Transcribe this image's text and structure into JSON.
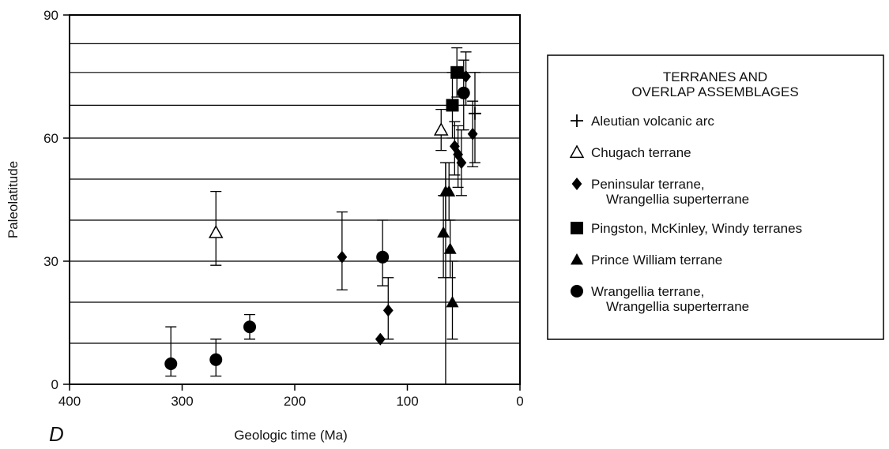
{
  "chart_data": {
    "type": "scatter",
    "panel_label": "D",
    "xlabel": "Geologic time (Ma)",
    "ylabel": "Paleolatitude",
    "xlim": [
      400,
      0
    ],
    "ylim": [
      0,
      90
    ],
    "x_ticks": [
      400,
      300,
      200,
      100,
      0
    ],
    "y_ticks": [
      0,
      30,
      60,
      90
    ],
    "gridlines_y": [
      10,
      20,
      30,
      40,
      50,
      60,
      68,
      76,
      83
    ],
    "legend": {
      "title_lines": [
        "TERRANES AND",
        "OVERLAP ASSEMBLAGES"
      ],
      "placement": "right"
    },
    "series": [
      {
        "name_lines": [
          "Aleutian volcanic arc"
        ],
        "marker": "plus",
        "points": [
          {
            "x": 40,
            "y": 66,
            "err_low": 54,
            "err_high": 76
          }
        ]
      },
      {
        "name_lines": [
          "Chugach terrane"
        ],
        "marker": "triangle-open",
        "points": [
          {
            "x": 270,
            "y": 37,
            "err_low": 29,
            "err_high": 47
          },
          {
            "x": 70,
            "y": 62,
            "err_low": 57,
            "err_high": 67
          }
        ]
      },
      {
        "name_lines": [
          "Peninsular terrane,",
          "Wrangellia superterrane"
        ],
        "marker": "diamond",
        "points": [
          {
            "x": 158,
            "y": 31,
            "err_low": 23,
            "err_high": 42
          },
          {
            "x": 124,
            "y": 11,
            "err_low": 11,
            "err_high": 11
          },
          {
            "x": 117,
            "y": 18,
            "err_low": 11,
            "err_high": 26
          },
          {
            "x": 58,
            "y": 58,
            "err_low": 51,
            "err_high": 64
          },
          {
            "x": 55,
            "y": 56,
            "err_low": 48,
            "err_high": 63
          },
          {
            "x": 52,
            "y": 54,
            "err_low": 46,
            "err_high": 62
          },
          {
            "x": 48,
            "y": 75,
            "err_low": 68,
            "err_high": 81
          },
          {
            "x": 42,
            "y": 61,
            "err_low": 53,
            "err_high": 69
          }
        ]
      },
      {
        "name_lines": [
          "Pingston, McKinley, Windy terranes"
        ],
        "marker": "square",
        "points": [
          {
            "x": 60,
            "y": 68,
            "err_low": 60,
            "err_high": 76
          },
          {
            "x": 56,
            "y": 76,
            "err_low": 70,
            "err_high": 82
          }
        ]
      },
      {
        "name_lines": [
          "Prince William terrane"
        ],
        "marker": "triangle",
        "points": [
          {
            "x": 68,
            "y": 37,
            "err_low": 26,
            "err_high": 46
          },
          {
            "x": 66,
            "y": 47,
            "err_low": 40,
            "err_high": 54
          },
          {
            "x": 63,
            "y": 47,
            "err_low": 40,
            "err_high": 54
          },
          {
            "x": 62,
            "y": 33,
            "err_low": 26,
            "err_high": 40
          },
          {
            "x": 60,
            "y": 20,
            "err_low": 11,
            "err_high": 30
          }
        ]
      },
      {
        "name_lines": [
          "Wrangellia terrane,",
          "Wrangellia superterrane"
        ],
        "marker": "circle",
        "points": [
          {
            "x": 310,
            "y": 5,
            "err_low": 2,
            "err_high": 14
          },
          {
            "x": 270,
            "y": 6,
            "err_low": 2,
            "err_high": 11
          },
          {
            "x": 240,
            "y": 14,
            "err_low": 11,
            "err_high": 17
          },
          {
            "x": 122,
            "y": 31,
            "err_low": 24,
            "err_high": 40
          },
          {
            "x": 50,
            "y": 71,
            "err_low": 62,
            "err_high": 79
          }
        ]
      }
    ],
    "extra_lines": [
      {
        "x": 66,
        "y_from": 0,
        "y_to": 54
      }
    ]
  }
}
